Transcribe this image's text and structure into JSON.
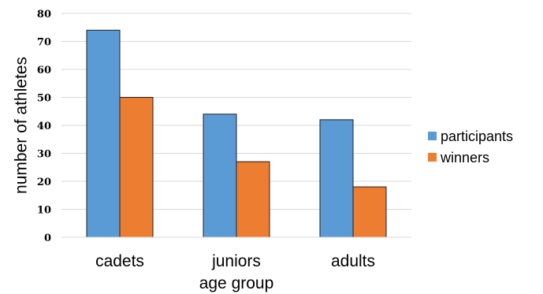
{
  "chart_data": {
    "type": "bar",
    "categories": [
      "cadets",
      "juniors",
      "adults"
    ],
    "series": [
      {
        "name": "participants",
        "values": [
          74,
          44,
          42
        ],
        "color": "#5b9bd5"
      },
      {
        "name": "winners",
        "values": [
          50,
          27,
          18
        ],
        "color": "#ed7d31"
      }
    ],
    "xlabel": "age group",
    "ylabel": "number of athletes",
    "ylim": [
      0,
      80
    ],
    "yticks": [
      0,
      10,
      20,
      30,
      40,
      50,
      60,
      70,
      80
    ],
    "grid": true,
    "legend_position": "right"
  }
}
